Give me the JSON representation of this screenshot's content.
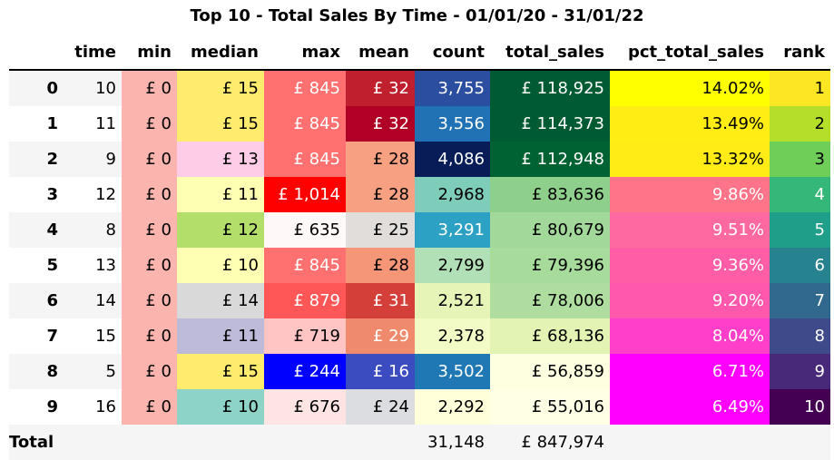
{
  "title": "Top 10 - Total Sales By Time - 01/01/20 - 31/01/22",
  "columns": [
    "",
    "time",
    "min",
    "median",
    "max",
    "mean",
    "count",
    "total_sales",
    "pct_total_sales",
    "rank"
  ],
  "rows": [
    {
      "index": "0",
      "cells": [
        {
          "v": "10"
        },
        {
          "v": "£ 0",
          "bg": "#fbb4ae"
        },
        {
          "v": "£ 15",
          "bg": "#ffeb6e"
        },
        {
          "v": "£ 845",
          "bg": "#ff7070",
          "fg": "#ffffff"
        },
        {
          "v": "£ 32",
          "bg": "#c0202e",
          "fg": "#ffffff"
        },
        {
          "v": "3,755",
          "bg": "#2b4ea0",
          "fg": "#ffffff"
        },
        {
          "v": "£ 118,925",
          "bg": "#005a32",
          "fg": "#ffffff"
        },
        {
          "v": "14.02%",
          "bg": "#ffff00"
        },
        {
          "v": "1",
          "bg": "#fde725"
        }
      ]
    },
    {
      "index": "1",
      "cells": [
        {
          "v": "11"
        },
        {
          "v": "£ 0",
          "bg": "#fbb4ae"
        },
        {
          "v": "£ 15",
          "bg": "#ffeb6e"
        },
        {
          "v": "£ 845",
          "bg": "#ff7070",
          "fg": "#ffffff"
        },
        {
          "v": "£ 32",
          "bg": "#b00026",
          "fg": "#ffffff"
        },
        {
          "v": "3,556",
          "bg": "#2171b5",
          "fg": "#ffffff"
        },
        {
          "v": "£ 114,373",
          "bg": "#005a32",
          "fg": "#ffffff"
        },
        {
          "v": "13.49%",
          "bg": "#ffed14"
        },
        {
          "v": "2",
          "bg": "#b5de2b"
        }
      ]
    },
    {
      "index": "2",
      "cells": [
        {
          "v": "9"
        },
        {
          "v": "£ 0",
          "bg": "#fbb4ae"
        },
        {
          "v": "£ 13",
          "bg": "#fecce6"
        },
        {
          "v": "£ 845",
          "bg": "#ff7070",
          "fg": "#ffffff"
        },
        {
          "v": "£ 28",
          "bg": "#f7a082"
        },
        {
          "v": "4,086",
          "bg": "#081d58",
          "fg": "#ffffff"
        },
        {
          "v": "£ 112,948",
          "bg": "#006132",
          "fg": "#ffffff"
        },
        {
          "v": "13.32%",
          "bg": "#ffeb16"
        },
        {
          "v": "3",
          "bg": "#6ece58"
        }
      ]
    },
    {
      "index": "3",
      "cells": [
        {
          "v": "12"
        },
        {
          "v": "£ 0",
          "bg": "#fbb4ae"
        },
        {
          "v": "£ 11",
          "bg": "#ffffb3"
        },
        {
          "v": "£ 1,014",
          "bg": "#ff0000",
          "fg": "#ffffff"
        },
        {
          "v": "£ 28",
          "bg": "#f7a082"
        },
        {
          "v": "2,968",
          "bg": "#7ecdbb"
        },
        {
          "v": "£ 83,636",
          "bg": "#8ed08b"
        },
        {
          "v": "9.86%",
          "bg": "#ff7488",
          "fg": "#ffffff"
        },
        {
          "v": "4",
          "bg": "#35b779",
          "fg": "#ffffff"
        }
      ]
    },
    {
      "index": "4",
      "cells": [
        {
          "v": "8"
        },
        {
          "v": "£ 0",
          "bg": "#fbb4ae"
        },
        {
          "v": "£ 12",
          "bg": "#b3de69"
        },
        {
          "v": "£ 635",
          "bg": "#fff8f8"
        },
        {
          "v": "£ 25",
          "bg": "#e0ddda"
        },
        {
          "v": "3,291",
          "bg": "#2ca1c3",
          "fg": "#ffffff"
        },
        {
          "v": "£ 80,679",
          "bg": "#a2d89a"
        },
        {
          "v": "9.51%",
          "bg": "#ff69a2",
          "fg": "#ffffff"
        },
        {
          "v": "5",
          "bg": "#1f9e89",
          "fg": "#ffffff"
        }
      ]
    },
    {
      "index": "5",
      "cells": [
        {
          "v": "13"
        },
        {
          "v": "£ 0",
          "bg": "#fbb4ae"
        },
        {
          "v": "£ 10",
          "bg": "#ffffb3"
        },
        {
          "v": "£ 845",
          "bg": "#ff7070",
          "fg": "#ffffff"
        },
        {
          "v": "£ 28",
          "bg": "#f59677"
        },
        {
          "v": "2,799",
          "bg": "#b2e0b6"
        },
        {
          "v": "£ 79,396",
          "bg": "#a7db9c"
        },
        {
          "v": "9.36%",
          "bg": "#ff5ea6",
          "fg": "#ffffff"
        },
        {
          "v": "6",
          "bg": "#26828e",
          "fg": "#ffffff"
        }
      ]
    },
    {
      "index": "6",
      "cells": [
        {
          "v": "14"
        },
        {
          "v": "£ 0",
          "bg": "#fbb4ae"
        },
        {
          "v": "£ 14",
          "bg": "#d9d9d9"
        },
        {
          "v": "£ 879",
          "bg": "#ff5757",
          "fg": "#ffffff"
        },
        {
          "v": "£ 31",
          "bg": "#d43f3a",
          "fg": "#ffffff"
        },
        {
          "v": "2,521",
          "bg": "#e6f5b7"
        },
        {
          "v": "£ 78,006",
          "bg": "#aedd9f"
        },
        {
          "v": "9.20%",
          "bg": "#ff58ac",
          "fg": "#ffffff"
        },
        {
          "v": "7",
          "bg": "#31688e",
          "fg": "#ffffff"
        }
      ]
    },
    {
      "index": "7",
      "cells": [
        {
          "v": "15"
        },
        {
          "v": "£ 0",
          "bg": "#fbb4ae"
        },
        {
          "v": "£ 11",
          "bg": "#bebada"
        },
        {
          "v": "£ 719",
          "bg": "#ffc4c4"
        },
        {
          "v": "£ 29",
          "bg": "#f08a6c",
          "fg": "#ffffff"
        },
        {
          "v": "2,378",
          "bg": "#f2fac5"
        },
        {
          "v": "£ 68,136",
          "bg": "#e2f3b3"
        },
        {
          "v": "8.04%",
          "bg": "#ff3fc9",
          "fg": "#ffffff"
        },
        {
          "v": "8",
          "bg": "#3e4a89",
          "fg": "#ffffff"
        }
      ]
    },
    {
      "index": "8",
      "cells": [
        {
          "v": "5"
        },
        {
          "v": "£ 0",
          "bg": "#fbb4ae"
        },
        {
          "v": "£ 15",
          "bg": "#ffeb6e"
        },
        {
          "v": "£ 244",
          "bg": "#0000ff",
          "fg": "#ffffff"
        },
        {
          "v": "£ 16",
          "bg": "#3b4cc0",
          "fg": "#ffffff"
        },
        {
          "v": "3,502",
          "bg": "#1f78b4",
          "fg": "#ffffff"
        },
        {
          "v": "£ 56,859",
          "bg": "#fefee0"
        },
        {
          "v": "6.71%",
          "bg": "#ff00ff",
          "fg": "#ffffff"
        },
        {
          "v": "9",
          "bg": "#482878",
          "fg": "#ffffff"
        }
      ]
    },
    {
      "index": "9",
      "cells": [
        {
          "v": "16"
        },
        {
          "v": "£ 0",
          "bg": "#fbb4ae"
        },
        {
          "v": "£ 10",
          "bg": "#8dd3c7"
        },
        {
          "v": "£ 676",
          "bg": "#ffe4e4"
        },
        {
          "v": "£ 24",
          "bg": "#dcdde0"
        },
        {
          "v": "2,292",
          "bg": "#ffffd9"
        },
        {
          "v": "£ 55,016",
          "bg": "#ffffe5"
        },
        {
          "v": "6.49%",
          "bg": "#ff00ff",
          "fg": "#ffffff"
        },
        {
          "v": "10",
          "bg": "#440154",
          "fg": "#ffffff"
        }
      ]
    }
  ],
  "total": {
    "label": "Total",
    "count": "31,148",
    "total_sales": "£ 847,974"
  }
}
